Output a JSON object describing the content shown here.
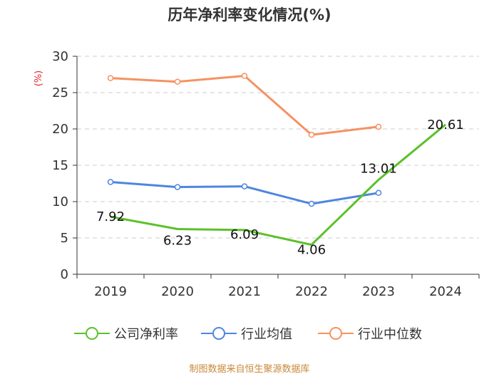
{
  "chart_data": {
    "type": "line",
    "title": "历年净利率变化情况(%)",
    "ylabel": "(%)",
    "xlabel": "",
    "ylim": [
      0,
      30
    ],
    "yticks": [
      0,
      5,
      10,
      15,
      20,
      25,
      30
    ],
    "categories": [
      "2019",
      "2020",
      "2021",
      "2022",
      "2023",
      "2024"
    ],
    "grid": true,
    "legend_position": "bottom",
    "series": [
      {
        "name": "公司净利率",
        "color": "#5bc12b",
        "values": [
          7.92,
          6.23,
          6.09,
          4.06,
          13.01,
          20.61
        ],
        "labels": [
          "7.92",
          "6.23",
          "6.09",
          "4.06",
          "13.01",
          "20.61"
        ],
        "markers": false
      },
      {
        "name": "行业均值",
        "color": "#4d86e0",
        "values": [
          12.7,
          12.0,
          12.1,
          9.7,
          11.2,
          null
        ],
        "markers": true
      },
      {
        "name": "行业中位数",
        "color": "#f59262",
        "values": [
          27.0,
          26.5,
          27.3,
          19.2,
          20.3,
          null
        ],
        "markers": true
      }
    ],
    "source": "制图数据来自恒生聚源数据库"
  }
}
